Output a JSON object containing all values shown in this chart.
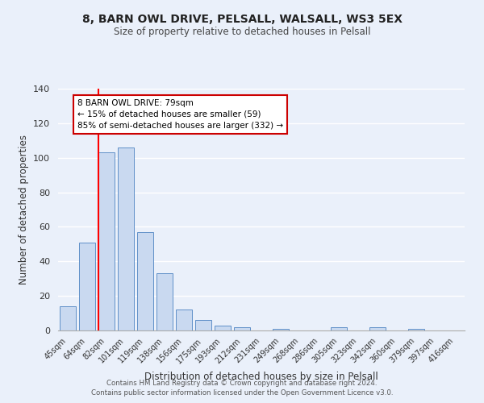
{
  "title": "8, BARN OWL DRIVE, PELSALL, WALSALL, WS3 5EX",
  "subtitle": "Size of property relative to detached houses in Pelsall",
  "xlabel": "Distribution of detached houses by size in Pelsall",
  "ylabel": "Number of detached properties",
  "bins": [
    "45sqm",
    "64sqm",
    "82sqm",
    "101sqm",
    "119sqm",
    "138sqm",
    "156sqm",
    "175sqm",
    "193sqm",
    "212sqm",
    "231sqm",
    "249sqm",
    "268sqm",
    "286sqm",
    "305sqm",
    "323sqm",
    "342sqm",
    "360sqm",
    "379sqm",
    "397sqm",
    "416sqm"
  ],
  "values": [
    14,
    51,
    103,
    106,
    57,
    33,
    12,
    6,
    3,
    2,
    0,
    1,
    0,
    0,
    2,
    0,
    2,
    0,
    1,
    0,
    0
  ],
  "bar_color": "#c9d9f0",
  "bar_edge_color": "#6090c8",
  "red_line_index": 2,
  "annotation_title": "8 BARN OWL DRIVE: 79sqm",
  "annotation_line1": "← 15% of detached houses are smaller (59)",
  "annotation_line2": "85% of semi-detached houses are larger (332) →",
  "annotation_box_facecolor": "#ffffff",
  "annotation_box_edgecolor": "#cc0000",
  "ylim": [
    0,
    140
  ],
  "yticks": [
    0,
    20,
    40,
    60,
    80,
    100,
    120,
    140
  ],
  "background_color": "#eaf0fa",
  "grid_color": "#ffffff",
  "footer1": "Contains HM Land Registry data © Crown copyright and database right 2024.",
  "footer2": "Contains public sector information licensed under the Open Government Licence v3.0."
}
